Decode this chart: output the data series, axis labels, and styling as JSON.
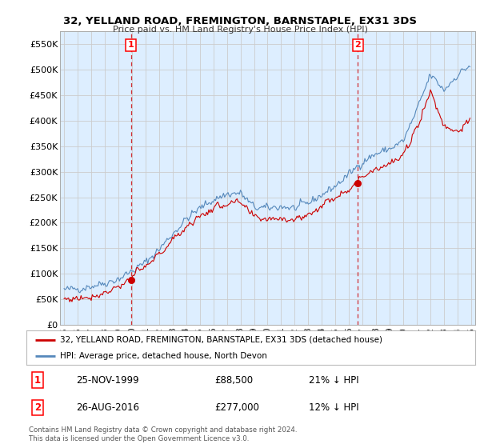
{
  "title": "32, YELLAND ROAD, FREMINGTON, BARNSTAPLE, EX31 3DS",
  "subtitle": "Price paid vs. HM Land Registry's House Price Index (HPI)",
  "sale1_date": "25-NOV-1999",
  "sale1_price": 88500,
  "sale1_hpi_pct": "21% ↓ HPI",
  "sale2_date": "26-AUG-2016",
  "sale2_price": 277000,
  "sale2_hpi_pct": "12% ↓ HPI",
  "sale1_year": 1999.92,
  "sale2_year": 2016.65,
  "ylim": [
    0,
    575000
  ],
  "yticks": [
    0,
    50000,
    100000,
    150000,
    200000,
    250000,
    300000,
    350000,
    400000,
    450000,
    500000,
    550000
  ],
  "ytick_labels": [
    "£0",
    "£50K",
    "£100K",
    "£150K",
    "£200K",
    "£250K",
    "£300K",
    "£350K",
    "£400K",
    "£450K",
    "£500K",
    "£550K"
  ],
  "xlim_start": 1994.7,
  "xlim_end": 2025.3,
  "property_color": "#cc0000",
  "hpi_color": "#5588bb",
  "plot_bg_color": "#ddeeff",
  "legend_property": "32, YELLAND ROAD, FREMINGTON, BARNSTAPLE, EX31 3DS (detached house)",
  "legend_hpi": "HPI: Average price, detached house, North Devon",
  "footer": "Contains HM Land Registry data © Crown copyright and database right 2024.\nThis data is licensed under the Open Government Licence v3.0.",
  "background_color": "#ffffff",
  "grid_color": "#cccccc"
}
